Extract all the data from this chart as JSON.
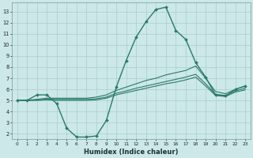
{
  "xlabel": "Humidex (Indice chaleur)",
  "bg_color": "#cce8e8",
  "grid_color": "#aacece",
  "line_color": "#2a7a6a",
  "xlim": [
    -0.5,
    23.5
  ],
  "ylim": [
    1.5,
    13.8
  ],
  "xticks": [
    0,
    1,
    2,
    3,
    4,
    5,
    6,
    7,
    8,
    9,
    10,
    11,
    12,
    13,
    14,
    15,
    16,
    17,
    18,
    19,
    20,
    21,
    22,
    23
  ],
  "yticks": [
    2,
    3,
    4,
    5,
    6,
    7,
    8,
    9,
    10,
    11,
    12,
    13
  ],
  "series": [
    {
      "x": [
        0,
        1,
        2,
        3,
        4,
        5,
        6,
        7,
        8,
        9,
        10,
        11,
        12,
        13,
        14,
        15,
        16,
        17,
        18,
        19,
        20,
        21,
        22,
        23
      ],
      "y": [
        5.0,
        5.0,
        5.5,
        5.5,
        4.7,
        2.5,
        1.7,
        1.7,
        1.8,
        3.2,
        6.2,
        8.6,
        10.7,
        12.1,
        13.2,
        13.4,
        11.3,
        10.5,
        8.4,
        7.1,
        5.5,
        5.4,
        6.0,
        6.3
      ],
      "marker": true,
      "lw": 1.0
    },
    {
      "x": [
        0,
        1,
        2,
        3,
        4,
        5,
        6,
        7,
        8,
        9,
        10,
        11,
        12,
        13,
        14,
        15,
        16,
        17,
        18,
        19,
        20,
        21,
        22,
        23
      ],
      "y": [
        5.0,
        5.0,
        5.1,
        5.2,
        5.2,
        5.2,
        5.2,
        5.2,
        5.3,
        5.5,
        5.9,
        6.2,
        6.5,
        6.8,
        7.0,
        7.3,
        7.5,
        7.7,
        8.1,
        7.0,
        5.8,
        5.6,
        6.0,
        6.3
      ],
      "marker": false,
      "lw": 0.8
    },
    {
      "x": [
        0,
        1,
        2,
        3,
        4,
        5,
        6,
        7,
        8,
        9,
        10,
        11,
        12,
        13,
        14,
        15,
        16,
        17,
        18,
        19,
        20,
        21,
        22,
        23
      ],
      "y": [
        5.0,
        5.0,
        5.05,
        5.1,
        5.1,
        5.1,
        5.1,
        5.1,
        5.15,
        5.3,
        5.65,
        5.85,
        6.1,
        6.3,
        6.5,
        6.7,
        6.9,
        7.1,
        7.35,
        6.5,
        5.55,
        5.45,
        5.85,
        6.1
      ],
      "marker": false,
      "lw": 0.8
    },
    {
      "x": [
        0,
        1,
        2,
        3,
        4,
        5,
        6,
        7,
        8,
        9,
        10,
        11,
        12,
        13,
        14,
        15,
        16,
        17,
        18,
        19,
        20,
        21,
        22,
        23
      ],
      "y": [
        5.0,
        5.0,
        5.0,
        5.05,
        5.0,
        5.0,
        5.0,
        5.0,
        5.05,
        5.2,
        5.5,
        5.7,
        5.9,
        6.1,
        6.3,
        6.5,
        6.65,
        6.85,
        7.1,
        6.3,
        5.45,
        5.35,
        5.75,
        5.95
      ],
      "marker": false,
      "lw": 0.8
    }
  ]
}
